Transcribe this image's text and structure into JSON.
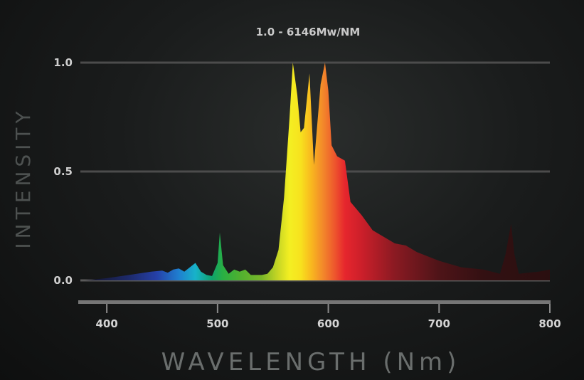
{
  "chart_data": {
    "type": "area",
    "title": "1.0 - 6146Mw/NM",
    "xlabel": "WAVELENGTH (Nm)",
    "ylabel": "INTENSITY",
    "xlim": [
      380,
      800
    ],
    "ylim": [
      0,
      1.0
    ],
    "xticks": [
      "400",
      "500",
      "600",
      "700",
      "800"
    ],
    "yticks": [
      "1.0",
      "0.5",
      "0.0"
    ],
    "ytick_values": [
      1.0,
      0.5,
      0.0
    ],
    "grid": true,
    "colors": {
      "background": "#161818",
      "gridline": "#4a4a4a",
      "axis_bar": "#6e6e6e"
    },
    "series": [
      {
        "x": [
          380,
          400,
          420,
          440,
          450,
          455,
          460,
          465,
          470,
          475,
          480,
          485,
          490,
          495,
          500,
          502,
          505,
          510,
          515,
          520,
          525,
          530,
          535,
          540,
          545,
          550,
          555,
          560,
          565,
          568,
          572,
          575,
          578,
          583,
          587,
          593,
          597,
          600,
          603,
          608,
          615,
          620,
          630,
          640,
          660,
          670,
          680,
          700,
          720,
          740,
          755,
          760,
          765,
          768,
          772,
          780,
          790,
          800
        ],
        "y": [
          0.0,
          0.01,
          0.025,
          0.04,
          0.045,
          0.035,
          0.05,
          0.055,
          0.04,
          0.06,
          0.08,
          0.04,
          0.025,
          0.02,
          0.08,
          0.22,
          0.07,
          0.03,
          0.05,
          0.04,
          0.05,
          0.025,
          0.025,
          0.025,
          0.03,
          0.06,
          0.14,
          0.38,
          0.75,
          1.0,
          0.85,
          0.68,
          0.7,
          0.95,
          0.53,
          0.9,
          1.0,
          0.87,
          0.62,
          0.57,
          0.55,
          0.36,
          0.3,
          0.23,
          0.17,
          0.16,
          0.13,
          0.09,
          0.06,
          0.05,
          0.03,
          0.12,
          0.26,
          0.12,
          0.03,
          0.035,
          0.04,
          0.05
        ]
      }
    ]
  }
}
